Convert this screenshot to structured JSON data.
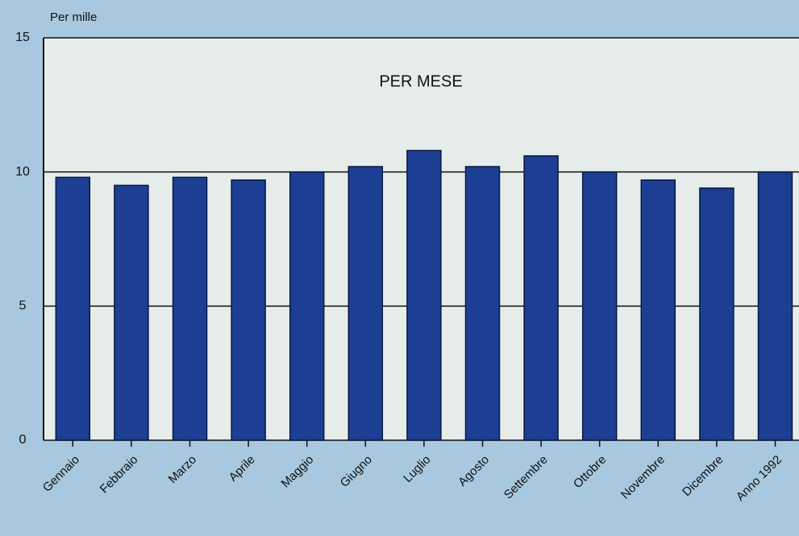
{
  "chart_data": {
    "type": "bar",
    "title": "PER MESE",
    "y_label": "Per mille",
    "categories": [
      "Gennaio",
      "Febbraio",
      "Marzo",
      "Aprile",
      "Maggio",
      "Giugno",
      "Luglio",
      "Agosto",
      "Settembre",
      "Ottobre",
      "Novembre",
      "Dicembre",
      "Anno 1992"
    ],
    "values": [
      9.8,
      9.5,
      9.8,
      9.7,
      10.0,
      10.2,
      10.8,
      10.2,
      10.6,
      10.0,
      9.7,
      9.4,
      10.0
    ],
    "color": "#1c3f94",
    "ylim": [
      0,
      15
    ],
    "yticks": [
      0,
      5,
      10,
      15
    ],
    "grid": true
  }
}
